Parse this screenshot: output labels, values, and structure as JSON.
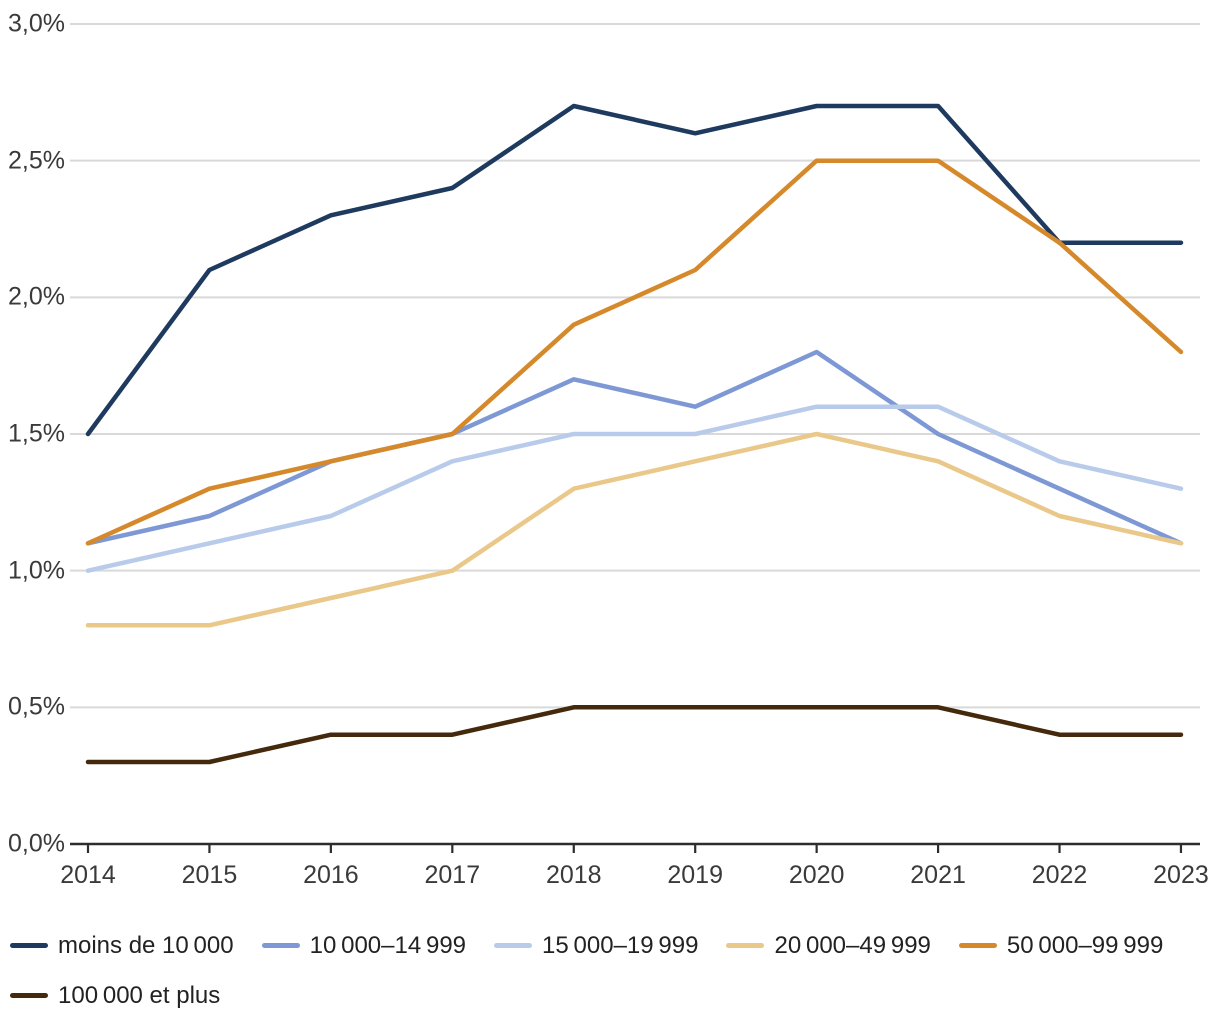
{
  "chart_data": {
    "type": "line",
    "title": "",
    "xlabel": "",
    "ylabel": "",
    "categories": [
      "2014",
      "2015",
      "2016",
      "2017",
      "2018",
      "2019",
      "2020",
      "2021",
      "2022",
      "2023"
    ],
    "ylim": [
      0,
      3.0
    ],
    "y_ticks": [
      0,
      0.5,
      1.0,
      1.5,
      2.0,
      2.5,
      3.0
    ],
    "y_tick_labels": [
      "0,0%",
      "0,5%",
      "1,0%",
      "1,5%",
      "2,0%",
      "2,5%",
      "3,0%"
    ],
    "grid": true,
    "legend_position": "bottom",
    "series": [
      {
        "name": "moins de 10 000",
        "color": "#1e3a5f",
        "values": [
          1.5,
          2.1,
          2.3,
          2.4,
          2.7,
          2.6,
          2.7,
          2.7,
          2.2,
          2.2
        ]
      },
      {
        "name": "10 000–14 999",
        "color": "#7d98d4",
        "values": [
          1.1,
          1.2,
          1.4,
          1.5,
          1.7,
          1.6,
          1.8,
          1.5,
          1.3,
          1.1
        ]
      },
      {
        "name": "15 000–19 999",
        "color": "#b9cbea",
        "values": [
          1.0,
          1.1,
          1.2,
          1.4,
          1.5,
          1.5,
          1.6,
          1.6,
          1.4,
          1.3
        ]
      },
      {
        "name": "20 000–49 999",
        "color": "#eac88a",
        "values": [
          0.8,
          0.8,
          0.9,
          1.0,
          1.3,
          1.4,
          1.5,
          1.4,
          1.2,
          1.1
        ]
      },
      {
        "name": "50 000–99 999",
        "color": "#d6892b",
        "values": [
          1.1,
          1.3,
          1.4,
          1.5,
          1.9,
          2.1,
          2.5,
          2.5,
          2.2,
          1.8
        ]
      },
      {
        "name": "100 000 et plus",
        "color": "#45290d",
        "values": [
          0.3,
          0.3,
          0.4,
          0.4,
          0.5,
          0.5,
          0.5,
          0.5,
          0.4,
          0.4
        ]
      }
    ],
    "colors": {
      "gridline": "#d9d9d9",
      "axis": "#2d2d2d",
      "tick_text": "#3a3a3a",
      "legend_text": "#222222"
    }
  }
}
